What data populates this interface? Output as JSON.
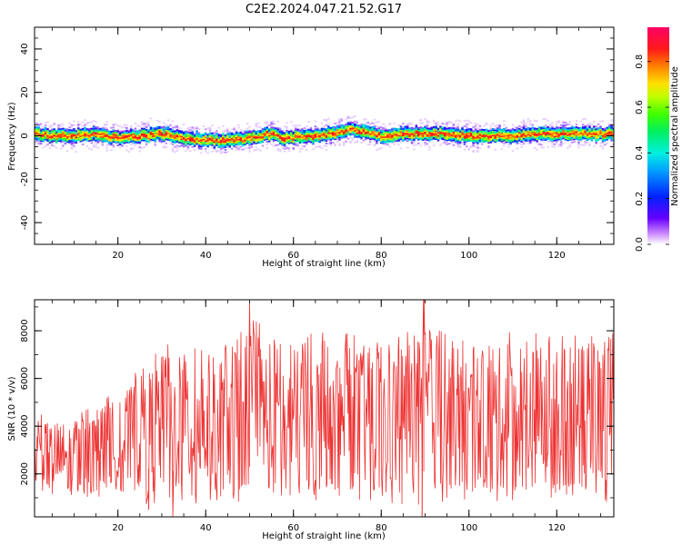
{
  "title": "C2E2.2024.047.21.52.G17",
  "chart_data": [
    {
      "type": "heatmap",
      "panel": "spectrogram",
      "xlabel": "Height of straight line (km)",
      "ylabel": "Frequency (Hz)",
      "xlim": [
        1,
        133
      ],
      "ylim": [
        -50,
        50
      ],
      "x_ticks": [
        20,
        40,
        60,
        80,
        100,
        120
      ],
      "y_ticks": [
        -40,
        -20,
        0,
        20,
        40
      ],
      "colorbar": {
        "label": "Normalized spectral amplitude",
        "range": [
          0,
          0.95
        ],
        "ticks": [
          0.0,
          0.2,
          0.4,
          0.6,
          0.8
        ],
        "colormap": "rainbow (purple-blue-cyan-green-yellow-red-magenta)"
      },
      "ridge_center_hz": [
        {
          "x": 1,
          "y": 1
        },
        {
          "x": 5,
          "y": 0
        },
        {
          "x": 10,
          "y": 0
        },
        {
          "x": 15,
          "y": 1
        },
        {
          "x": 20,
          "y": -1
        },
        {
          "x": 25,
          "y": 0
        },
        {
          "x": 30,
          "y": 1
        },
        {
          "x": 35,
          "y": -1
        },
        {
          "x": 40,
          "y": -2
        },
        {
          "x": 45,
          "y": -2
        },
        {
          "x": 50,
          "y": -1
        },
        {
          "x": 55,
          "y": 1
        },
        {
          "x": 58,
          "y": -1
        },
        {
          "x": 62,
          "y": 0
        },
        {
          "x": 66,
          "y": 0
        },
        {
          "x": 70,
          "y": 2
        },
        {
          "x": 73,
          "y": 3
        },
        {
          "x": 76,
          "y": 2
        },
        {
          "x": 80,
          "y": 0
        },
        {
          "x": 85,
          "y": 1
        },
        {
          "x": 90,
          "y": 1
        },
        {
          "x": 95,
          "y": 1
        },
        {
          "x": 100,
          "y": 0
        },
        {
          "x": 105,
          "y": 0
        },
        {
          "x": 110,
          "y": 0
        },
        {
          "x": 115,
          "y": 1
        },
        {
          "x": 120,
          "y": 1
        },
        {
          "x": 125,
          "y": 1
        },
        {
          "x": 133,
          "y": 1
        }
      ],
      "band_half_width_hz": 3,
      "faint_spread_hz": 8
    },
    {
      "type": "line",
      "panel": "snr",
      "xlabel": "Height of straight line (km)",
      "ylabel": "SNR (10 * v/v)",
      "xlim": [
        1,
        133
      ],
      "ylim": [
        200,
        9300
      ],
      "x_ticks": [
        20,
        40,
        60,
        80,
        100,
        120
      ],
      "y_ticks": [
        2000,
        4000,
        6000,
        8000
      ],
      "series": [
        {
          "color": "#ee3333",
          "envelope": [
            {
              "x": 1,
              "low": 1000,
              "high": 4500
            },
            {
              "x": 10,
              "low": 800,
              "high": 4500
            },
            {
              "x": 20,
              "low": 1000,
              "high": 5500
            },
            {
              "x": 30,
              "low": 600,
              "high": 7500
            },
            {
              "x": 40,
              "low": 700,
              "high": 7500
            },
            {
              "x": 50,
              "low": 800,
              "high": 8500
            },
            {
              "x": 60,
              "low": 700,
              "high": 7800
            },
            {
              "x": 70,
              "low": 800,
              "high": 8000
            },
            {
              "x": 80,
              "low": 700,
              "high": 7500
            },
            {
              "x": 90,
              "low": 600,
              "high": 8500
            },
            {
              "x": 100,
              "low": 800,
              "high": 7500
            },
            {
              "x": 110,
              "low": 800,
              "high": 8000
            },
            {
              "x": 120,
              "low": 900,
              "high": 7800
            },
            {
              "x": 133,
              "low": 800,
              "high": 8000
            }
          ],
          "peaks": [
            {
              "x": 50,
              "y": 9200
            },
            {
              "x": 89.7,
              "y": 9300
            },
            {
              "x": 27,
              "y": 500
            },
            {
              "x": 32.5,
              "y": 200
            },
            {
              "x": 89.3,
              "y": 200
            }
          ]
        }
      ]
    }
  ]
}
